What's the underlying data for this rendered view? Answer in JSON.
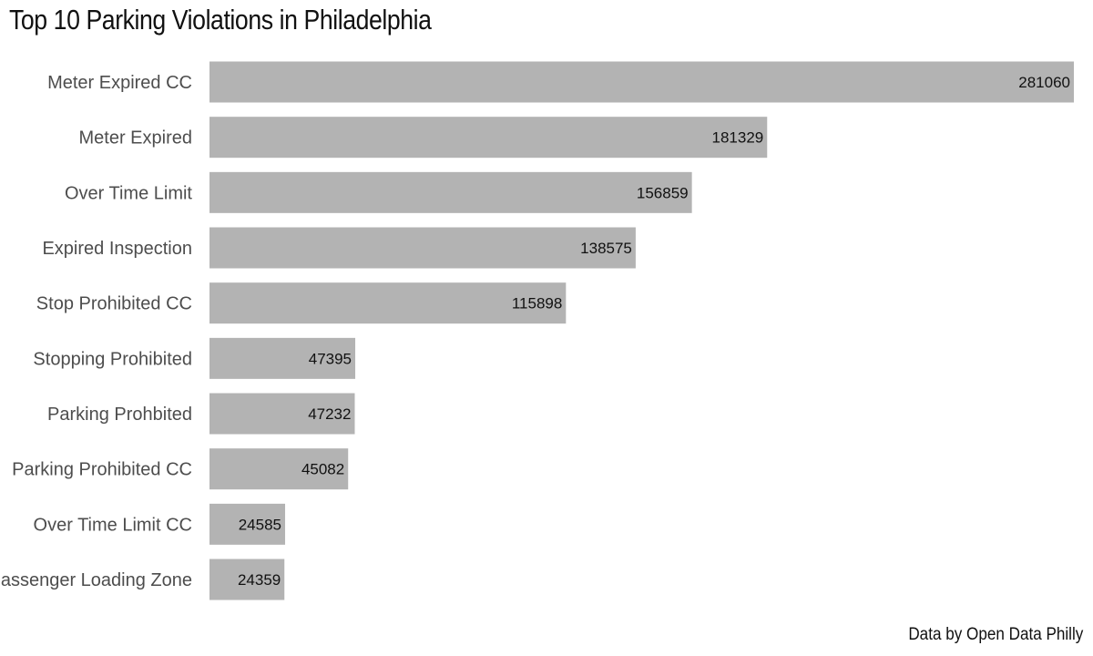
{
  "chart_data": {
    "type": "bar",
    "orientation": "horizontal",
    "title": "Top 10 Parking Violations in Philadelphia",
    "caption": "Data by Open Data Philly",
    "xlabel": "",
    "ylabel": "",
    "grid": false,
    "xlim": [
      0,
      281060
    ],
    "categories": [
      "Meter Expired CC",
      "Meter Expired",
      "Over Time Limit",
      "Expired Inspection",
      "Stop Prohibited CC",
      "Stopping Prohibited",
      "Parking Prohbited",
      "Parking Prohibited CC",
      "Over Time Limit CC",
      "Passenger Loading Zone"
    ],
    "values": [
      281060,
      181329,
      156859,
      138575,
      115898,
      47395,
      47232,
      45082,
      24585,
      24359
    ],
    "value_labels": [
      "281060",
      "181329",
      "156859",
      "138575",
      "115898",
      "47395",
      "47232",
      "45082",
      "24585",
      "24359"
    ],
    "bar_color": "#b3b3b3"
  }
}
